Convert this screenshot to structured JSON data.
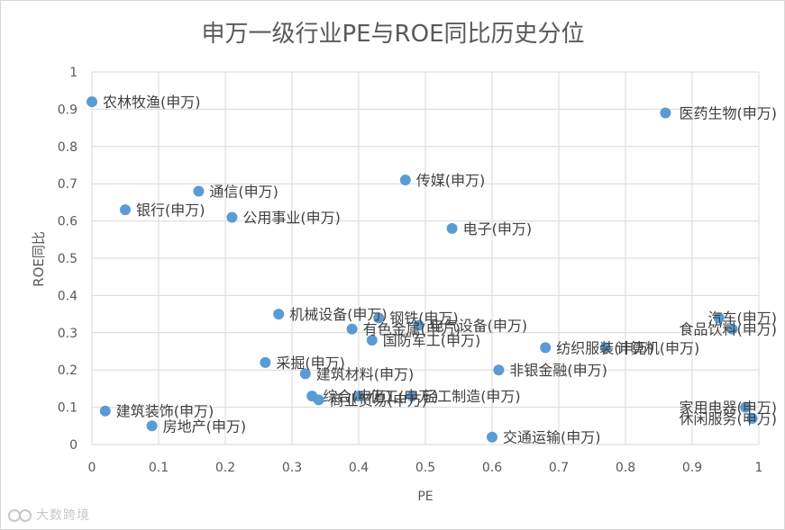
{
  "chart_data": {
    "type": "scatter",
    "title": "申万一级行业PE与ROE同比历史分位",
    "xlabel": "PE",
    "ylabel": "ROE同比",
    "xlim": [
      0,
      1
    ],
    "ylim": [
      0,
      1
    ],
    "xticks": [
      "0",
      "0.1",
      "0.2",
      "0.3",
      "0.4",
      "0.5",
      "0.6",
      "0.7",
      "0.8",
      "0.9",
      "1"
    ],
    "yticks": [
      "0",
      "0.1",
      "0.2",
      "0.3",
      "0.4",
      "0.5",
      "0.6",
      "0.7",
      "0.8",
      "0.9",
      "1"
    ],
    "grid": true,
    "legend": "none",
    "point_color": "#5b9bd5",
    "points": [
      {
        "label": "农林牧渔(申万)",
        "x": 0.0,
        "y": 0.92
      },
      {
        "label": "医药生物(申万)",
        "x": 0.86,
        "y": 0.89
      },
      {
        "label": "传媒(申万)",
        "x": 0.47,
        "y": 0.71
      },
      {
        "label": "通信(申万)",
        "x": 0.16,
        "y": 0.68
      },
      {
        "label": "银行(申万)",
        "x": 0.05,
        "y": 0.63
      },
      {
        "label": "公用事业(申万)",
        "x": 0.21,
        "y": 0.61
      },
      {
        "label": "电子(申万)",
        "x": 0.54,
        "y": 0.58
      },
      {
        "label": "机械设备(申万)",
        "x": 0.28,
        "y": 0.35
      },
      {
        "label": "钢铁(申万)",
        "x": 0.43,
        "y": 0.34
      },
      {
        "label": "电气设备(申万)",
        "x": 0.49,
        "y": 0.32
      },
      {
        "label": "有色金属(申万)",
        "x": 0.39,
        "y": 0.31
      },
      {
        "label": "国防军工(申万)",
        "x": 0.42,
        "y": 0.28
      },
      {
        "label": "汽车(申万)",
        "x": 0.94,
        "y": 0.34
      },
      {
        "label": "食品饮料(申万)",
        "x": 0.96,
        "y": 0.31
      },
      {
        "label": "纺织服装(申万)",
        "x": 0.68,
        "y": 0.26
      },
      {
        "label": "计算机(申万)",
        "x": 0.77,
        "y": 0.26
      },
      {
        "label": "采掘(申万)",
        "x": 0.26,
        "y": 0.22
      },
      {
        "label": "建筑材料(申万)",
        "x": 0.32,
        "y": 0.19
      },
      {
        "label": "非银金融(申万)",
        "x": 0.61,
        "y": 0.2
      },
      {
        "label": "综合(申万)",
        "x": 0.33,
        "y": 0.13
      },
      {
        "label": "商业贸易(申万)",
        "x": 0.34,
        "y": 0.12
      },
      {
        "label": "化工(申万)",
        "x": 0.4,
        "y": 0.13
      },
      {
        "label": "轻工制造(申万)",
        "x": 0.48,
        "y": 0.13
      },
      {
        "label": "建筑装饰(申万)",
        "x": 0.02,
        "y": 0.09
      },
      {
        "label": "房地产(申万)",
        "x": 0.09,
        "y": 0.05
      },
      {
        "label": "家用电器(申万)",
        "x": 0.98,
        "y": 0.1
      },
      {
        "label": "休闲服务(申万)",
        "x": 0.99,
        "y": 0.07
      },
      {
        "label": "交通运输(申万)",
        "x": 0.6,
        "y": 0.02
      }
    ]
  },
  "watermark": {
    "text": "大数跨境"
  }
}
